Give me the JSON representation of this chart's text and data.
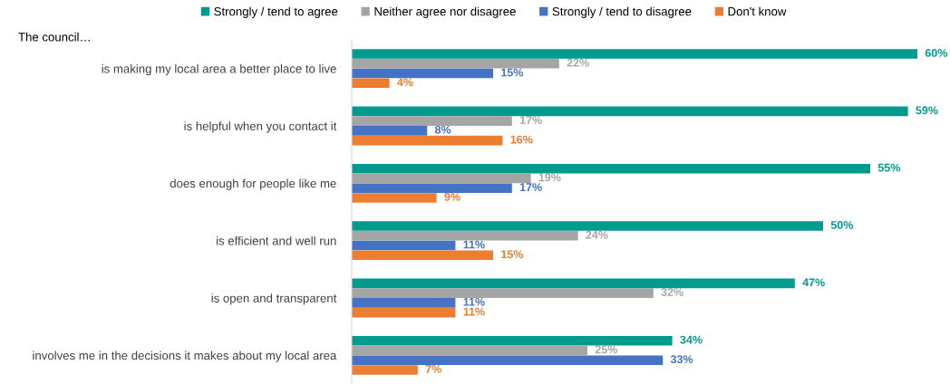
{
  "chart_data": {
    "type": "bar",
    "orientation": "horizontal",
    "legend": "top",
    "annotations": [
      "The council…"
    ],
    "categories": [
      "is making my local area a better place to live",
      "is helpful when you contact it",
      "does enough for people like me",
      "is efficient and well run",
      "is open and transparent",
      "involves me in the decisions it makes about my local area"
    ],
    "series": [
      {
        "name": "Strongly / tend to agree",
        "color": "#009b8f",
        "values": [
          60,
          59,
          55,
          50,
          47,
          34
        ],
        "value_labels": [
          "60%",
          "59%",
          "55%",
          "50%",
          "47%",
          "34%"
        ]
      },
      {
        "name": "Neither agree nor disagree",
        "color": "#a5a5a5",
        "values": [
          22,
          17,
          19,
          24,
          32,
          25
        ],
        "value_labels": [
          "22%",
          "17%",
          "19%",
          "24%",
          "32%",
          "25%"
        ]
      },
      {
        "name": "Strongly / tend to disagree",
        "color": "#4472c4",
        "values": [
          15,
          8,
          17,
          11,
          11,
          33
        ],
        "value_labels": [
          "15%",
          "8%",
          "17%",
          "11%",
          "11%",
          "33%"
        ]
      },
      {
        "name": "Don't know",
        "color": "#ed7d31",
        "values": [
          4,
          16,
          9,
          15,
          11,
          7
        ],
        "value_labels": [
          "4%",
          "16%",
          "9%",
          "15%",
          "11%",
          "7%"
        ]
      }
    ]
  }
}
